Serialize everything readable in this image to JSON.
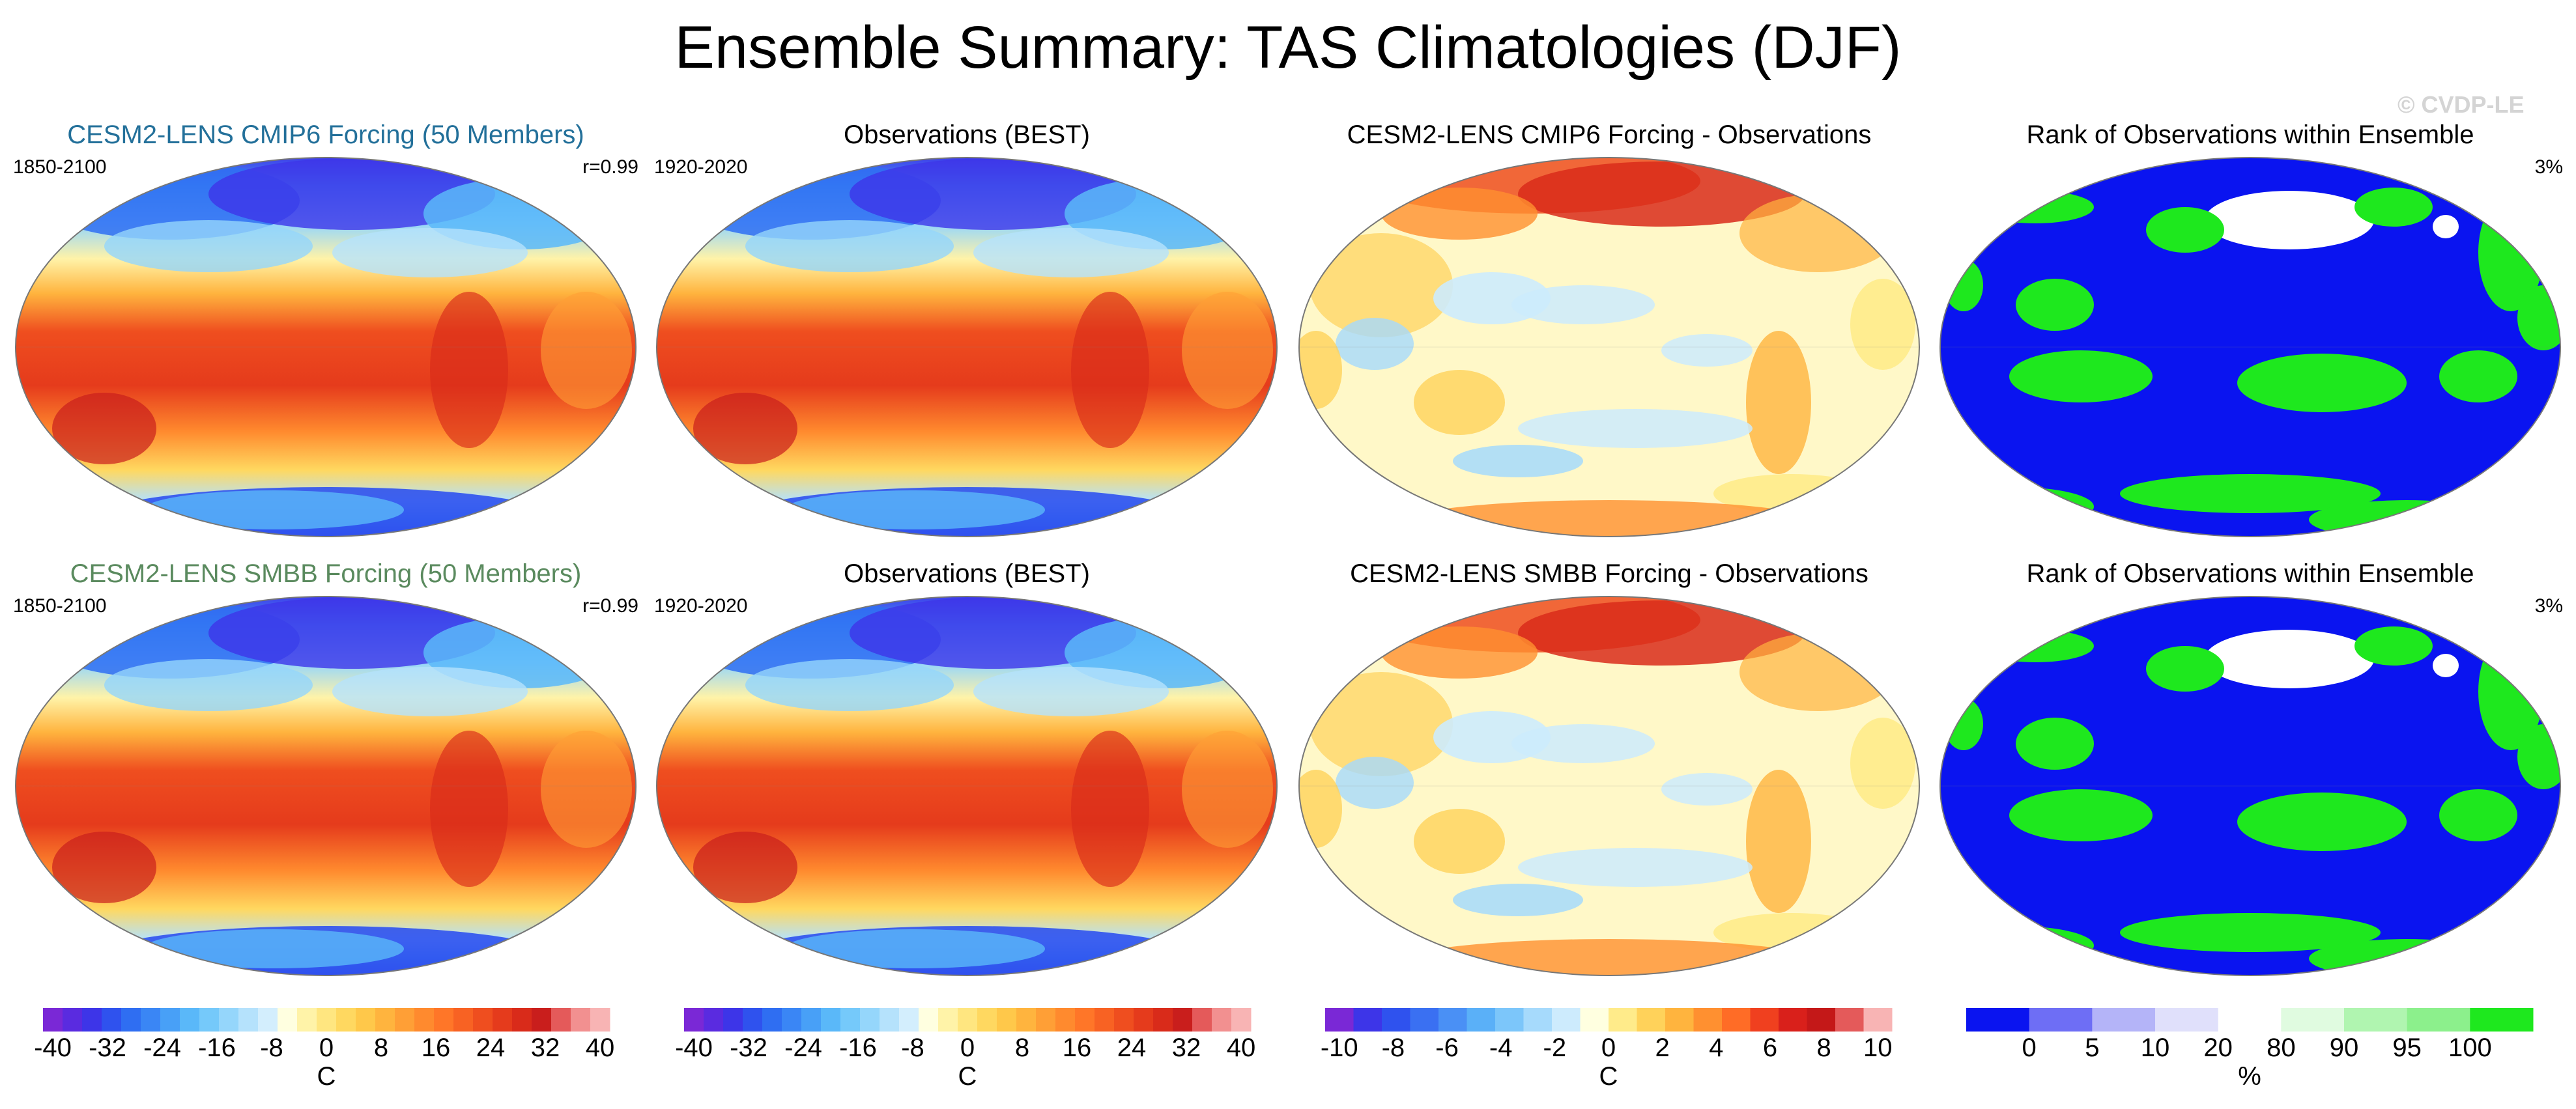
{
  "title": "Ensemble Summary: TAS Climatologies (DJF)",
  "watermark": "© CVDP-LE",
  "colors": {
    "model1_title": "#23709a",
    "model2_title": "#5a8a5e"
  },
  "rows": [
    {
      "panels": [
        {
          "kind": "climo",
          "title": "CESM2-LENS CMIP6 Forcing (50 Members)",
          "title_color": "#23709a",
          "left_label": "1850-2100",
          "right_label": "r=0.99"
        },
        {
          "kind": "climo",
          "title": "Observations (BEST)",
          "title_color": "#000000",
          "left_label": "1920-2020",
          "right_label": ""
        },
        {
          "kind": "diff",
          "title": "CESM2-LENS CMIP6 Forcing - Observations",
          "title_color": "#000000",
          "left_label": "",
          "right_label": ""
        },
        {
          "kind": "rank",
          "title": "Rank of Observations within Ensemble",
          "title_color": "#000000",
          "left_label": "",
          "right_label": "3%"
        }
      ]
    },
    {
      "panels": [
        {
          "kind": "climo",
          "title": "CESM2-LENS SMBB Forcing (50 Members)",
          "title_color": "#5a8a5e",
          "left_label": "1850-2100",
          "right_label": "r=0.99"
        },
        {
          "kind": "climo",
          "title": "Observations (BEST)",
          "title_color": "#000000",
          "left_label": "1920-2020",
          "right_label": ""
        },
        {
          "kind": "diff",
          "title": "CESM2-LENS SMBB Forcing - Observations",
          "title_color": "#000000",
          "left_label": "",
          "right_label": ""
        },
        {
          "kind": "rank",
          "title": "Rank of Observations within Ensemble",
          "title_color": "#000000",
          "left_label": "",
          "right_label": "3%"
        }
      ]
    }
  ],
  "colorbars": [
    {
      "unit": "C",
      "tick_labels": [
        "-40",
        "-32",
        "-24",
        "-16",
        "-8",
        "0",
        "8",
        "16",
        "24",
        "32",
        "40"
      ],
      "colors": [
        "#7a28d6",
        "#5a2be0",
        "#3d35e8",
        "#2f52ee",
        "#2f6ef2",
        "#3a86f5",
        "#48a0f7",
        "#5ab8f9",
        "#75c9fa",
        "#95d6fb",
        "#b5e2fc",
        "#d3eefd",
        "#ffffe0",
        "#fff3a8",
        "#ffe680",
        "#ffd860",
        "#ffc84a",
        "#ffb43e",
        "#ff9f36",
        "#ff8a2e",
        "#ff7628",
        "#f86223",
        "#ef4e1f",
        "#e53b1c",
        "#d92b1a",
        "#c91e1c",
        "#e45a5a",
        "#f29090",
        "#f8b4b4"
      ]
    },
    {
      "unit": "C",
      "tick_labels": [
        "-40",
        "-32",
        "-24",
        "-16",
        "-8",
        "0",
        "8",
        "16",
        "24",
        "32",
        "40"
      ],
      "colors": [
        "#7a28d6",
        "#5a2be0",
        "#3d35e8",
        "#2f52ee",
        "#2f6ef2",
        "#3a86f5",
        "#48a0f7",
        "#5ab8f9",
        "#75c9fa",
        "#95d6fb",
        "#b5e2fc",
        "#d3eefd",
        "#ffffe0",
        "#fff3a8",
        "#ffe680",
        "#ffd860",
        "#ffc84a",
        "#ffb43e",
        "#ff9f36",
        "#ff8a2e",
        "#ff7628",
        "#f86223",
        "#ef4e1f",
        "#e53b1c",
        "#d92b1a",
        "#c91e1c",
        "#e45a5a",
        "#f29090",
        "#f8b4b4"
      ]
    },
    {
      "unit": "C",
      "tick_labels": [
        "-10",
        "-8",
        "-6",
        "-4",
        "-2",
        "0",
        "2",
        "4",
        "6",
        "8",
        "10"
      ],
      "colors": [
        "#7a28d6",
        "#3d35e8",
        "#2f52ee",
        "#3a70f2",
        "#4a90f5",
        "#5ab0f8",
        "#7cc6fa",
        "#a6dafc",
        "#cdebfd",
        "#ffffe0",
        "#ffeb8a",
        "#ffd25a",
        "#ffb43e",
        "#ff9030",
        "#ff6c26",
        "#f0401f",
        "#d9201b",
        "#c41818",
        "#e45a5a",
        "#f8b4b4"
      ]
    },
    {
      "unit": "%",
      "tick_labels": [
        "0",
        "5",
        "10",
        "20",
        "80",
        "90",
        "95",
        "100"
      ],
      "colors": [
        "#0a14f0",
        "#6e6ef5",
        "#b4b4f8",
        "#e0e0fb",
        "#ffffff",
        "#e0fbe0",
        "#b0f5b0",
        "#8cf08c",
        "#1ee81e"
      ]
    }
  ],
  "chart_data": [
    {
      "type": "heatmap",
      "title": "CESM2-LENS CMIP6 Forcing (50 Members)",
      "period": "1850-2100",
      "pattern_correlation": 0.99,
      "units": "C",
      "levels_range": [
        -40,
        40
      ]
    },
    {
      "type": "heatmap",
      "title": "Observations (BEST)",
      "period": "1920-2020",
      "units": "C",
      "levels_range": [
        -40,
        40
      ]
    },
    {
      "type": "heatmap",
      "title": "CESM2-LENS CMIP6 Forcing - Observations",
      "units": "C",
      "levels_range": [
        -10,
        10
      ]
    },
    {
      "type": "heatmap",
      "title": "Rank of Observations within Ensemble",
      "units": "%",
      "levels": [
        0,
        5,
        10,
        20,
        80,
        90,
        95,
        100
      ],
      "area_summary": "3%"
    },
    {
      "type": "heatmap",
      "title": "CESM2-LENS SMBB Forcing (50 Members)",
      "period": "1850-2100",
      "pattern_correlation": 0.99,
      "units": "C",
      "levels_range": [
        -40,
        40
      ]
    },
    {
      "type": "heatmap",
      "title": "Observations (BEST)",
      "period": "1920-2020",
      "units": "C",
      "levels_range": [
        -40,
        40
      ]
    },
    {
      "type": "heatmap",
      "title": "CESM2-LENS SMBB Forcing - Observations",
      "units": "C",
      "levels_range": [
        -10,
        10
      ]
    },
    {
      "type": "heatmap",
      "title": "Rank of Observations within Ensemble",
      "units": "%",
      "levels": [
        0,
        5,
        10,
        20,
        80,
        90,
        95,
        100
      ],
      "area_summary": "3%"
    }
  ]
}
